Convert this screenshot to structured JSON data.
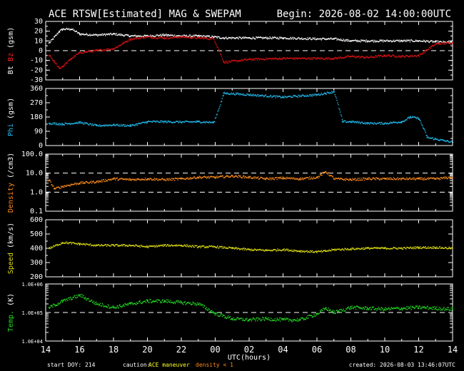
{
  "header": {
    "title": "ACE RTSW[Estimated] MAG & SWEPAM",
    "begin": "Begin: 2026-08-02 14:00:00UTC"
  },
  "footer": {
    "start_doy": "start DOY: 214",
    "caution_label": "caution:",
    "caution_maneuver": "ACE maneuver",
    "caution_density": "density < 1",
    "created": "created: 2026-08-03 13:46:07UTC"
  },
  "colors": {
    "bt": "#ffffff",
    "bz": "#dd1111",
    "phi": "#22bbee",
    "density": "#ff8c1a",
    "speed": "#dddd11",
    "temp": "#22dd22",
    "frame": "#ffffff",
    "label_red": "#ff2222"
  },
  "chart_data": {
    "type": "scatter",
    "x_label": "UTC(hours)",
    "x_range_hours": [
      14,
      38
    ],
    "x_ticks": [
      "14",
      "16",
      "18",
      "20",
      "22",
      "00",
      "02",
      "04",
      "06",
      "08",
      "10",
      "12",
      "14"
    ],
    "panels": [
      {
        "id": "mag",
        "ylabel_parts": [
          "Bt",
          "Bz",
          "(gsm)"
        ],
        "yscale": "linear",
        "ylim": [
          -30,
          30
        ],
        "ticks": [
          "30",
          "20",
          "10",
          "0",
          "-10",
          "-20",
          "-30"
        ],
        "tick_values": [
          30,
          20,
          10,
          0,
          -10,
          -20,
          -30
        ],
        "dashed_lines": [
          0
        ],
        "series": [
          {
            "key": "bt",
            "x": [
              14.2,
              14.5,
              14.8,
              15.0,
              15.5,
              16.0,
              17.0,
              18.0,
              19.0,
              20.0,
              21.0,
              22.0,
              23.0,
              23.9,
              24.5,
              26.0,
              28.0,
              30.0,
              31.0,
              32.0,
              33.0,
              34.0,
              35.0,
              36.0,
              37.0,
              38.0
            ],
            "y": [
              8,
              14,
              20,
              22,
              22,
              17,
              16,
              17,
              15,
              15,
              16,
              15,
              15,
              14,
              13,
              13,
              13,
              12,
              12,
              10,
              10,
              10,
              10,
              10,
              9,
              8
            ]
          },
          {
            "key": "bz",
            "x": [
              14.2,
              14.5,
              14.8,
              15.0,
              15.5,
              16.0,
              17.0,
              18.0,
              19.0,
              20.0,
              21.0,
              22.0,
              23.0,
              23.9,
              24.5,
              26.0,
              28.0,
              30.0,
              31.0,
              32.0,
              33.0,
              34.0,
              35.0,
              36.0,
              37.0,
              38.0
            ],
            "y": [
              -5,
              -12,
              -18,
              -16,
              -8,
              -2,
              0,
              2,
              12,
              14,
              13,
              14,
              13,
              12,
              -12,
              -9,
              -8,
              -8,
              -8,
              -6,
              -7,
              -5,
              -6,
              -5,
              7,
              8
            ]
          }
        ]
      },
      {
        "id": "phi",
        "ylabel_parts": [
          "Phi",
          "(gsm)"
        ],
        "yscale": "linear",
        "ylim": [
          0,
          360
        ],
        "ticks": [
          "360",
          "270",
          "180",
          "90",
          "0"
        ],
        "tick_values": [
          360,
          270,
          180,
          90,
          0
        ],
        "dashed_lines": [],
        "series": [
          {
            "key": "phi",
            "x": [
              14.2,
              15.0,
              16.0,
              17.0,
              18.0,
              19.0,
              20.0,
              21.0,
              22.0,
              23.0,
              23.9,
              24.5,
              26.0,
              28.0,
              30.0,
              30.5,
              31.0,
              31.5,
              32.0,
              33.0,
              34.0,
              35.0,
              35.5,
              36.0,
              36.5,
              37.0,
              37.5,
              38.0
            ],
            "y": [
              140,
              135,
              145,
              125,
              130,
              125,
              150,
              150,
              148,
              150,
              145,
              330,
              320,
              305,
              320,
              330,
              340,
              150,
              150,
              140,
              140,
              150,
              180,
              170,
              50,
              40,
              30,
              20
            ]
          }
        ]
      },
      {
        "id": "density",
        "ylabel_parts": [
          "Density",
          "(/cm3)"
        ],
        "yscale": "log",
        "ylim": [
          0.1,
          100
        ],
        "ticks": [
          "100.0",
          "10.0",
          "1.0",
          "0.1"
        ],
        "tick_values": [
          100,
          10,
          1,
          0.1
        ],
        "dashed_lines": [
          10,
          1
        ],
        "series": [
          {
            "key": "density",
            "x": [
              14.2,
              14.5,
              15.0,
              15.5,
              16.0,
              17.0,
              18.0,
              19.0,
              20.0,
              21.0,
              22.0,
              23.0,
              24.0,
              25.0,
              26.0,
              27.0,
              28.0,
              29.0,
              30.0,
              30.5,
              31.0,
              32.0,
              33.0,
              34.0,
              35.0,
              36.0,
              37.0,
              38.0
            ],
            "y": [
              4,
              1.5,
              2,
              2.5,
              3,
              3.5,
              5,
              4.5,
              5,
              4.5,
              5,
              6,
              6,
              7,
              6,
              5,
              5.5,
              5,
              6,
              12,
              5,
              4.5,
              5,
              5,
              5,
              5,
              5,
              6
            ]
          }
        ]
      },
      {
        "id": "speed",
        "ylabel_parts": [
          "Speed",
          "(km/s)"
        ],
        "yscale": "linear",
        "ylim": [
          200,
          600
        ],
        "ticks": [
          "600",
          "500",
          "400",
          "300",
          "200"
        ],
        "tick_values": [
          600,
          500,
          400,
          300,
          200
        ],
        "dashed_lines": [],
        "series": [
          {
            "key": "speed",
            "x": [
              14.2,
              15.0,
              16.0,
              17.0,
              18.0,
              19.0,
              20.0,
              21.0,
              22.0,
              23.0,
              24.0,
              25.0,
              26.0,
              27.0,
              28.0,
              29.0,
              30.0,
              30.5,
              31.0,
              32.0,
              33.0,
              34.0,
              35.0,
              36.0,
              37.0,
              38.0
            ],
            "y": [
              400,
              440,
              430,
              420,
              420,
              420,
              410,
              420,
              420,
              410,
              410,
              400,
              390,
              385,
              390,
              380,
              375,
              380,
              390,
              395,
              400,
              400,
              400,
              405,
              405,
              400
            ]
          }
        ]
      },
      {
        "id": "temp",
        "ylabel_parts": [
          "Temp.",
          "(K)"
        ],
        "yscale": "log",
        "ylim": [
          10000,
          1000000
        ],
        "ticks": [
          "1.0E+06",
          "1.0E+05",
          "1.0E+04"
        ],
        "tick_values": [
          1000000,
          100000,
          10000
        ],
        "dashed_lines": [
          100000
        ],
        "series": [
          {
            "key": "temp",
            "x": [
              14.2,
              15.0,
              16.0,
              17.0,
              18.0,
              19.0,
              20.0,
              21.0,
              22.0,
              23.0,
              24.0,
              25.0,
              26.0,
              27.0,
              28.0,
              29.0,
              30.0,
              30.5,
              31.0,
              32.0,
              33.0,
              34.0,
              35.0,
              36.0,
              37.0,
              38.0
            ],
            "y": [
              150000,
              250000,
              400000,
              200000,
              150000,
              200000,
              250000,
              250000,
              220000,
              200000,
              90000,
              60000,
              55000,
              60000,
              55000,
              55000,
              90000,
              140000,
              100000,
              150000,
              140000,
              130000,
              140000,
              150000,
              140000,
              130000
            ]
          }
        ]
      }
    ]
  }
}
